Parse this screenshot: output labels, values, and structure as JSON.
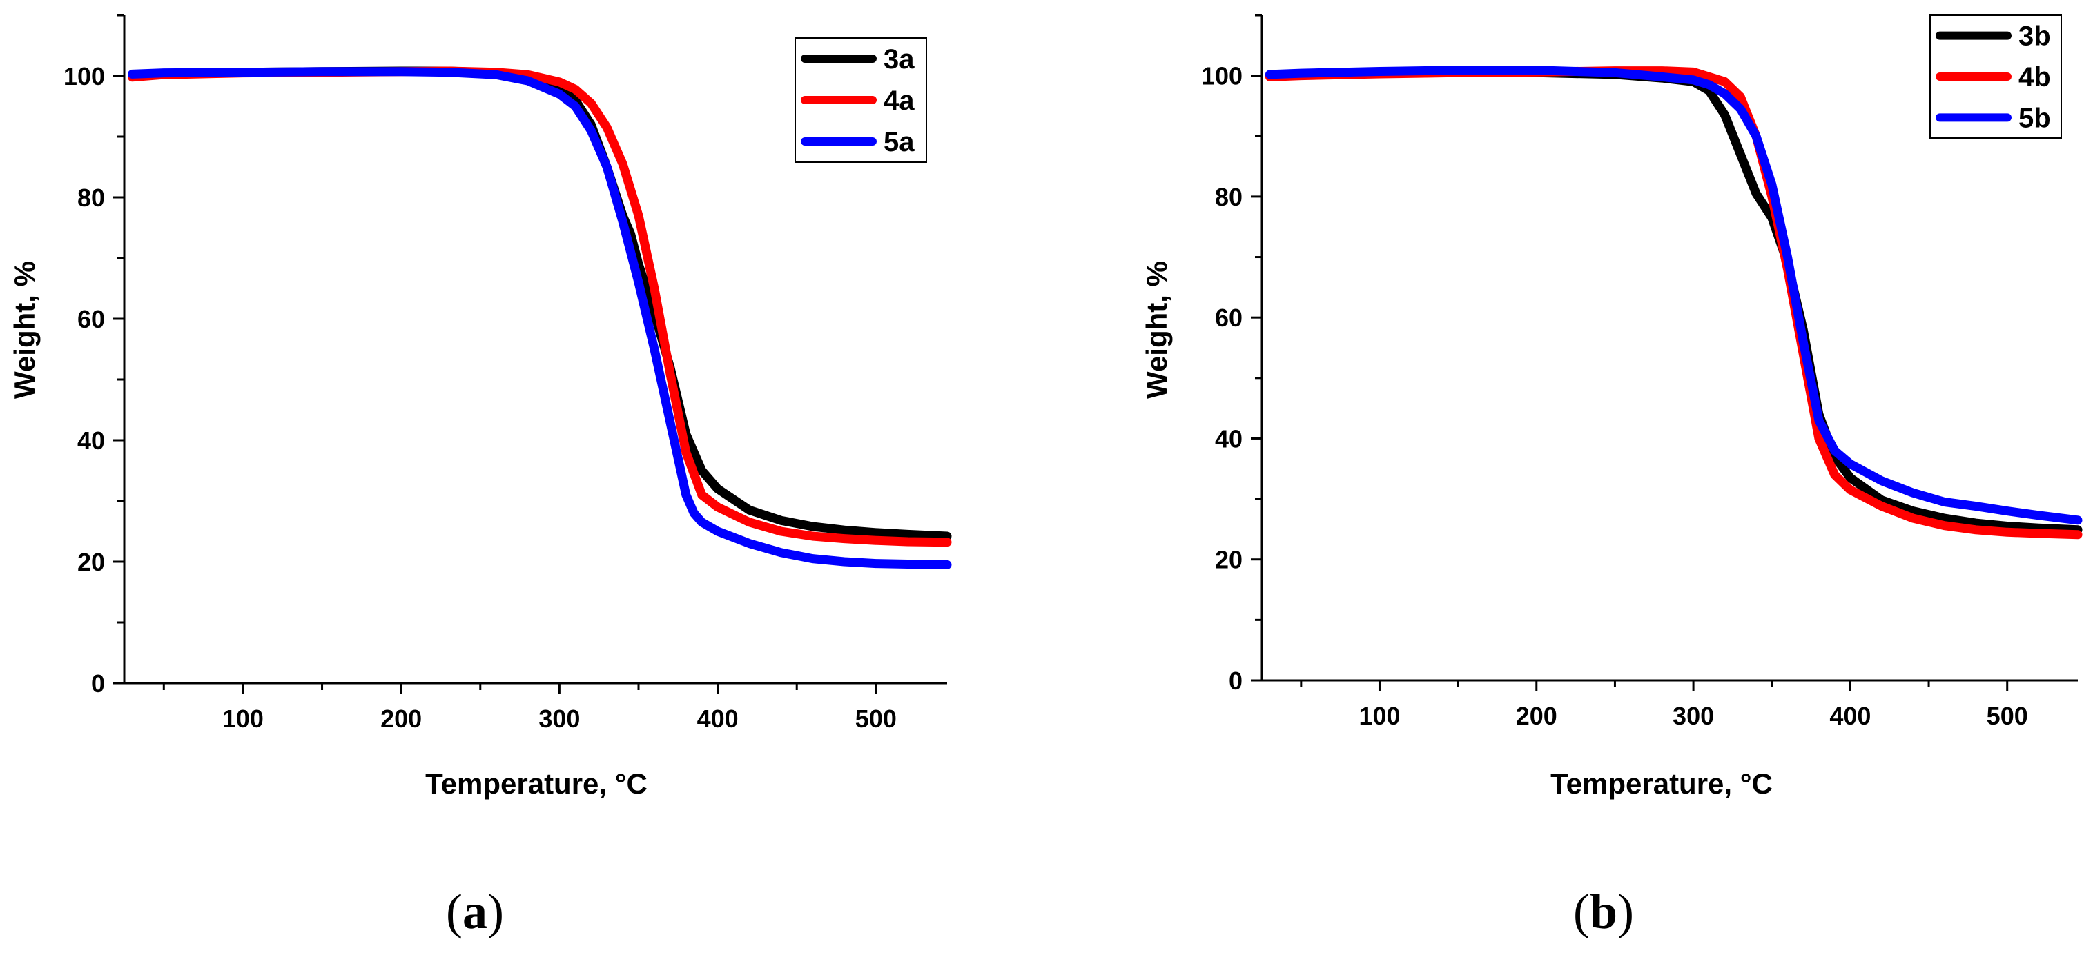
{
  "chart_data": [
    {
      "type": "line",
      "panel_label": "a",
      "xlabel": "Temperature, °C",
      "ylabel": "Weight, %",
      "xlim": [
        25,
        545
      ],
      "ylim": [
        0,
        110
      ],
      "xticks": [
        100,
        200,
        300,
        400,
        500
      ],
      "yticks": [
        0,
        20,
        40,
        60,
        80,
        100
      ],
      "legend_position": "top-right",
      "series": [
        {
          "name": "3a",
          "color": "#000000",
          "x": [
            30,
            50,
            100,
            150,
            200,
            230,
            260,
            280,
            300,
            310,
            320,
            330,
            340,
            345,
            350,
            360,
            370,
            380,
            390,
            400,
            420,
            440,
            460,
            480,
            500,
            520,
            545
          ],
          "y": [
            100.2,
            100.4,
            100.6,
            100.7,
            100.8,
            100.8,
            100.5,
            99.8,
            98.0,
            96.0,
            92.0,
            85.0,
            77.0,
            74.0,
            69.0,
            61.0,
            52.0,
            41.0,
            35.0,
            32.0,
            28.5,
            26.8,
            25.8,
            25.2,
            24.8,
            24.5,
            24.2
          ]
        },
        {
          "name": "4a",
          "color": "#ff0000",
          "x": [
            30,
            50,
            100,
            150,
            200,
            230,
            260,
            280,
            300,
            310,
            320,
            330,
            340,
            350,
            360,
            370,
            380,
            390,
            400,
            420,
            440,
            460,
            480,
            500,
            520,
            545
          ],
          "y": [
            99.8,
            100.2,
            100.5,
            100.6,
            100.7,
            100.8,
            100.6,
            100.2,
            99.0,
            97.8,
            95.5,
            91.5,
            85.5,
            77.0,
            65.0,
            51.0,
            38.0,
            31.0,
            29.0,
            26.5,
            25.0,
            24.2,
            23.8,
            23.5,
            23.3,
            23.2
          ]
        },
        {
          "name": "5a",
          "color": "#0000ff",
          "x": [
            30,
            50,
            100,
            150,
            200,
            230,
            260,
            280,
            300,
            310,
            320,
            330,
            340,
            350,
            360,
            370,
            380,
            385,
            390,
            400,
            420,
            440,
            460,
            480,
            500,
            520,
            545
          ],
          "y": [
            100.3,
            100.5,
            100.6,
            100.7,
            100.7,
            100.6,
            100.2,
            99.2,
            97.0,
            95.0,
            91.0,
            85.0,
            76.0,
            66.0,
            55.0,
            43.0,
            31.0,
            28.0,
            26.5,
            25.0,
            23.0,
            21.5,
            20.5,
            20.0,
            19.7,
            19.6,
            19.5
          ]
        }
      ]
    },
    {
      "type": "line",
      "panel_label": "b",
      "xlabel": "Temperature, °C",
      "ylabel": "Weight, %",
      "xlim": [
        25,
        545
      ],
      "ylim": [
        0,
        110
      ],
      "xticks": [
        100,
        200,
        300,
        400,
        500
      ],
      "yticks": [
        0,
        20,
        40,
        60,
        80,
        100
      ],
      "legend_position": "top-right",
      "series": [
        {
          "name": "3b",
          "color": "#000000",
          "x": [
            30,
            50,
            100,
            150,
            200,
            250,
            280,
            300,
            310,
            320,
            330,
            340,
            350,
            360,
            370,
            380,
            390,
            400,
            420,
            440,
            460,
            480,
            500,
            520,
            545
          ],
          "y": [
            100.0,
            100.2,
            100.4,
            100.5,
            100.5,
            100.2,
            99.6,
            99.0,
            97.5,
            93.5,
            87.0,
            80.5,
            76.5,
            69.0,
            58.0,
            44.0,
            37.0,
            33.5,
            29.8,
            28.0,
            26.8,
            26.0,
            25.5,
            25.2,
            24.9
          ]
        },
        {
          "name": "4b",
          "color": "#ff0000",
          "x": [
            30,
            50,
            100,
            150,
            200,
            250,
            280,
            300,
            320,
            330,
            340,
            350,
            360,
            370,
            380,
            390,
            400,
            420,
            440,
            460,
            480,
            500,
            520,
            545
          ],
          "y": [
            99.8,
            100.0,
            100.3,
            100.5,
            100.6,
            100.8,
            100.8,
            100.6,
            99.0,
            96.5,
            90.0,
            80.0,
            68.0,
            54.0,
            40.0,
            34.0,
            31.5,
            28.8,
            26.8,
            25.6,
            24.9,
            24.5,
            24.3,
            24.1
          ]
        },
        {
          "name": "5b",
          "color": "#0000ff",
          "x": [
            30,
            50,
            100,
            150,
            200,
            250,
            280,
            300,
            310,
            320,
            330,
            340,
            350,
            360,
            370,
            380,
            390,
            400,
            420,
            440,
            460,
            480,
            500,
            520,
            545
          ],
          "y": [
            100.2,
            100.4,
            100.7,
            100.9,
            100.9,
            100.5,
            99.8,
            99.3,
            98.5,
            97.0,
            94.5,
            90.0,
            82.0,
            70.0,
            56.0,
            43.0,
            38.0,
            35.8,
            33.0,
            31.0,
            29.5,
            28.8,
            28.0,
            27.3,
            26.5
          ]
        }
      ]
    }
  ]
}
